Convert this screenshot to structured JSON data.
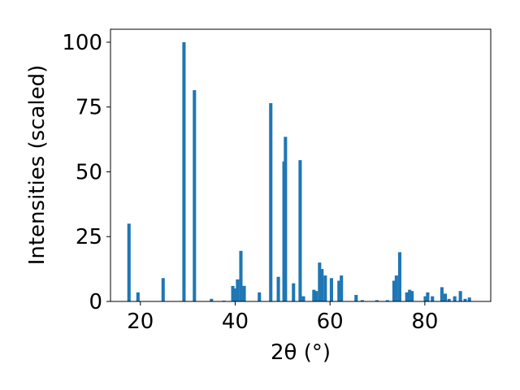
{
  "chart_data": {
    "type": "bar",
    "xlabel": "2θ (°)",
    "ylabel": "Intensities (scaled)",
    "x": [
      17.6,
      19.5,
      24.8,
      29.2,
      31.4,
      35.0,
      37.6,
      39.5,
      40.0,
      40.5,
      41.2,
      41.9,
      45.1,
      47.5,
      49.1,
      50.3,
      50.6,
      52.3,
      53.7,
      54.4,
      56.6,
      57.1,
      57.8,
      58.3,
      59.0,
      60.3,
      61.9,
      62.4,
      65.5,
      66.8,
      69.9,
      72.1,
      73.5,
      74.0,
      74.7,
      76.2,
      76.8,
      77.3,
      80.1,
      80.6,
      81.6,
      83.6,
      84.3,
      85.1,
      86.3,
      87.5,
      88.5,
      89.4
    ],
    "values": [
      30,
      3.5,
      9,
      100,
      81.5,
      1,
      0.3,
      6,
      5,
      8.5,
      19.5,
      6,
      3.5,
      76.5,
      9.5,
      54,
      63.5,
      7,
      54.5,
      2,
      4.5,
      4,
      15,
      12.5,
      10,
      9,
      8,
      10,
      2.5,
      0.5,
      0.5,
      0.5,
      8,
      10,
      19,
      3.5,
      4.5,
      4,
      2,
      3.5,
      2,
      5.5,
      3,
      1,
      2,
      4,
      1,
      1.5
    ],
    "color": "#1f77b4",
    "xlim": [
      13.7,
      93.9
    ],
    "xticks": [
      20,
      40,
      60,
      80
    ],
    "ylim": [
      0,
      105
    ],
    "yticks": [
      0,
      25,
      50,
      75,
      100
    ]
  }
}
